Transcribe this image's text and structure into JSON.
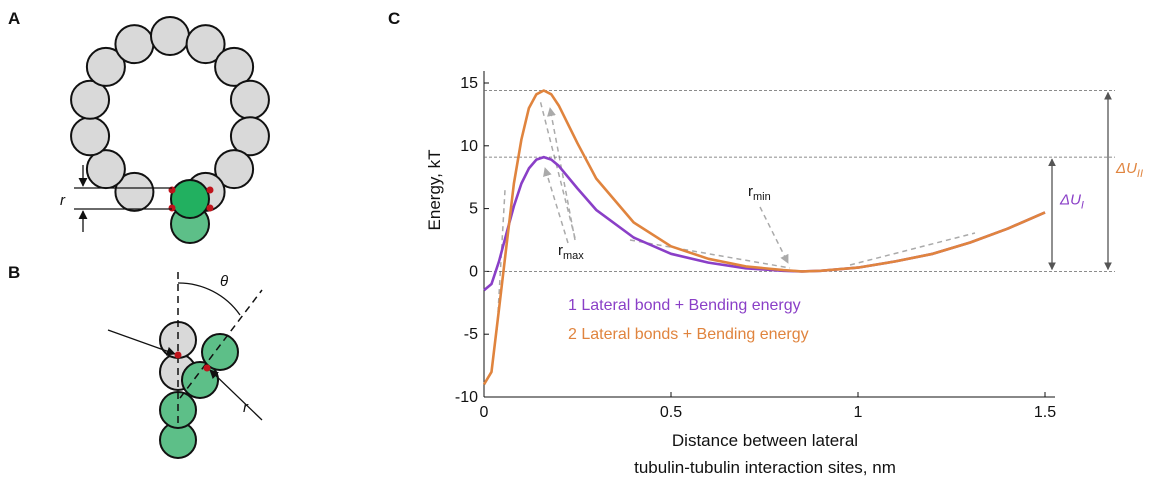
{
  "panels": {
    "a": {
      "label": "A",
      "r": "r"
    },
    "b": {
      "label": "B",
      "theta": "θ",
      "r": "r"
    },
    "c": {
      "label": "C"
    }
  },
  "chart_data": {
    "type": "line",
    "ylabel": "Energy, kT",
    "xlabel": [
      "Distance between lateral",
      "tubulin-tubulin interaction sites, nm"
    ],
    "x": [
      0,
      0.02,
      0.04,
      0.06,
      0.08,
      0.1,
      0.12,
      0.14,
      0.16,
      0.18,
      0.2,
      0.25,
      0.3,
      0.4,
      0.5,
      0.6,
      0.7,
      0.8,
      0.85,
      0.9,
      1.0,
      1.1,
      1.2,
      1.3,
      1.4,
      1.5
    ],
    "series": [
      {
        "name": "1 Lateral bond + Bending energy",
        "color": "#8a3fc7",
        "values": [
          -1.5,
          -1,
          0.8,
          3,
          5.2,
          7,
          8.2,
          8.9,
          9.1,
          8.9,
          8.4,
          6.6,
          4.9,
          2.7,
          1.4,
          0.7,
          0.25,
          0.05,
          0,
          0.05,
          0.3,
          0.8,
          1.4,
          2.3,
          3.4,
          4.7
        ]
      },
      {
        "name": "2 Lateral bonds + Bending energy",
        "color": "#e0843e",
        "values": [
          -9,
          -8,
          -3,
          2,
          7,
          10.5,
          13,
          14.1,
          14.4,
          14.1,
          13.2,
          10.2,
          7.4,
          3.9,
          2.0,
          1.0,
          0.4,
          0.1,
          0,
          0.05,
          0.3,
          0.8,
          1.4,
          2.3,
          3.4,
          4.7
        ]
      }
    ],
    "xlim": [
      0,
      1.5
    ],
    "xticks": [
      0,
      0.5,
      1,
      1.5
    ],
    "ylim": [
      -10,
      15
    ],
    "yticks": [
      -10,
      -5,
      0,
      5,
      10,
      15
    ],
    "reference_lines": [
      14.4,
      9.1,
      0
    ],
    "annotations": {
      "rmax": [
        "r",
        "max"
      ],
      "rmin": [
        "r",
        "min"
      ],
      "dU1": [
        "ΔU",
        "I"
      ],
      "dU2": [
        "ΔU",
        "II"
      ]
    }
  }
}
